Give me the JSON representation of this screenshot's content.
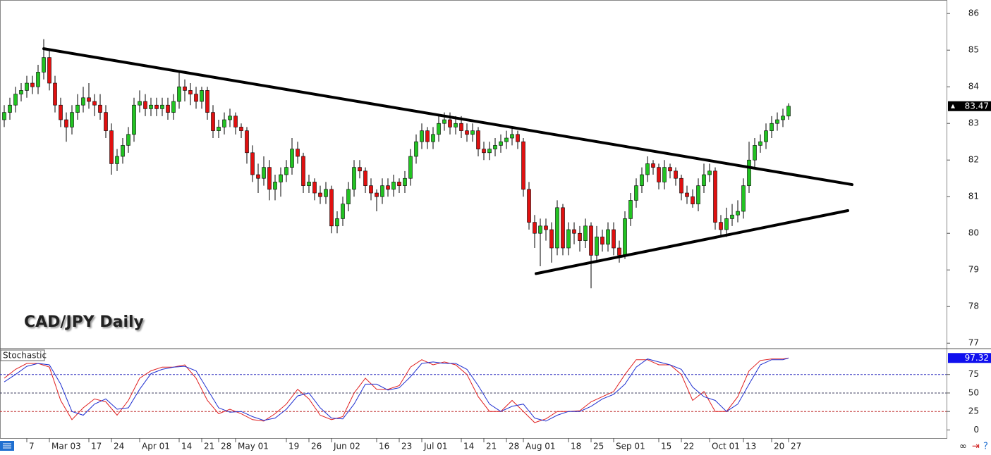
{
  "chart_data": [
    {
      "type": "candlestick",
      "title": "CAD/JPY Daily",
      "up_color": "#22c322",
      "down_color": "#e01010",
      "xlim": [
        -0.75,
        167
      ],
      "ylim": [
        76.87,
        86.35
      ],
      "yticks": [
        77,
        78,
        79,
        80,
        81,
        82,
        83,
        84,
        85,
        86
      ],
      "xticks": [
        {
          "value": 4,
          "label": "7"
        },
        {
          "value": 8,
          "label": "Mar 03"
        },
        {
          "value": 15,
          "label": "17"
        },
        {
          "value": 19,
          "label": "24"
        },
        {
          "value": 24,
          "label": "Apr 01"
        },
        {
          "value": 31,
          "label": "14"
        },
        {
          "value": 35,
          "label": "21"
        },
        {
          "value": 38,
          "label": "28"
        },
        {
          "value": 41,
          "label": "May 01"
        },
        {
          "value": 50,
          "label": "19"
        },
        {
          "value": 54,
          "label": "26"
        },
        {
          "value": 58,
          "label": "Jun 02"
        },
        {
          "value": 66,
          "label": "16"
        },
        {
          "value": 70,
          "label": "23"
        },
        {
          "value": 74,
          "label": "Jul 01"
        },
        {
          "value": 81,
          "label": "14"
        },
        {
          "value": 85,
          "label": "21"
        },
        {
          "value": 89,
          "label": "28"
        },
        {
          "value": 92,
          "label": "Aug 01"
        },
        {
          "value": 100,
          "label": "18"
        },
        {
          "value": 104,
          "label": "25"
        },
        {
          "value": 108,
          "label": "Sep 01"
        },
        {
          "value": 116,
          "label": "15"
        },
        {
          "value": 120,
          "label": "22"
        },
        {
          "value": 125,
          "label": "Oct 01"
        },
        {
          "value": 131,
          "label": "13"
        },
        {
          "value": 136,
          "label": "20"
        },
        {
          "value": 139,
          "label": "27"
        }
      ],
      "trendlines": [
        {
          "x": [
            7,
            150.25
          ],
          "y": [
            85.04,
            81.33
          ]
        },
        {
          "x": [
            94.25,
            149.5
          ],
          "y": [
            78.9,
            80.62
          ]
        }
      ],
      "ohlc": [
        [
          83.1,
          83.5,
          82.9,
          83.3
        ],
        [
          83.3,
          83.7,
          83.1,
          83.5
        ],
        [
          83.5,
          84.0,
          83.3,
          83.8
        ],
        [
          83.8,
          84.1,
          83.6,
          83.9
        ],
        [
          83.9,
          84.3,
          83.7,
          84.1
        ],
        [
          84.1,
          84.3,
          83.8,
          84.0
        ],
        [
          84.0,
          84.6,
          83.8,
          84.4
        ],
        [
          84.4,
          85.3,
          84.2,
          84.8
        ],
        [
          84.8,
          85.0,
          83.9,
          84.1
        ],
        [
          84.1,
          84.3,
          83.3,
          83.5
        ],
        [
          83.5,
          83.7,
          82.9,
          83.1
        ],
        [
          83.1,
          83.3,
          82.5,
          82.9
        ],
        [
          82.9,
          83.5,
          82.7,
          83.3
        ],
        [
          83.3,
          83.8,
          83.1,
          83.5
        ],
        [
          83.5,
          84.0,
          83.3,
          83.7
        ],
        [
          83.7,
          84.1,
          83.4,
          83.6
        ],
        [
          83.6,
          83.8,
          83.2,
          83.5
        ],
        [
          83.5,
          83.8,
          83.1,
          83.3
        ],
        [
          83.3,
          83.5,
          82.6,
          82.8
        ],
        [
          82.8,
          83.0,
          81.6,
          81.9
        ],
        [
          81.9,
          82.3,
          81.7,
          82.1
        ],
        [
          82.1,
          82.6,
          81.9,
          82.4
        ],
        [
          82.4,
          82.9,
          82.2,
          82.7
        ],
        [
          82.7,
          83.7,
          82.5,
          83.5
        ],
        [
          83.5,
          83.9,
          83.3,
          83.6
        ],
        [
          83.6,
          83.8,
          83.2,
          83.4
        ],
        [
          83.4,
          83.7,
          83.2,
          83.5
        ],
        [
          83.5,
          83.7,
          83.2,
          83.4
        ],
        [
          83.4,
          83.7,
          83.2,
          83.5
        ],
        [
          83.5,
          83.7,
          83.1,
          83.3
        ],
        [
          83.3,
          83.8,
          83.1,
          83.6
        ],
        [
          83.6,
          84.4,
          83.4,
          84.0
        ],
        [
          84.0,
          84.2,
          83.6,
          83.9
        ],
        [
          83.9,
          84.1,
          83.5,
          83.8
        ],
        [
          83.8,
          84.0,
          83.4,
          83.6
        ],
        [
          83.6,
          84.0,
          83.4,
          83.9
        ],
        [
          83.9,
          84.0,
          83.1,
          83.3
        ],
        [
          83.3,
          83.5,
          82.6,
          82.8
        ],
        [
          82.8,
          83.1,
          82.6,
          82.9
        ],
        [
          82.9,
          83.3,
          82.7,
          83.1
        ],
        [
          83.1,
          83.4,
          82.9,
          83.2
        ],
        [
          83.2,
          83.3,
          82.7,
          82.9
        ],
        [
          82.9,
          83.0,
          82.6,
          82.8
        ],
        [
          82.8,
          82.9,
          81.9,
          82.2
        ],
        [
          82.2,
          82.4,
          81.4,
          81.6
        ],
        [
          81.6,
          81.9,
          81.1,
          81.5
        ],
        [
          81.5,
          82.1,
          81.3,
          81.8
        ],
        [
          81.8,
          82.0,
          80.9,
          81.2
        ],
        [
          81.2,
          81.6,
          80.9,
          81.4
        ],
        [
          81.4,
          81.8,
          81.0,
          81.6
        ],
        [
          81.6,
          82.0,
          81.4,
          81.8
        ],
        [
          81.8,
          82.6,
          81.6,
          82.3
        ],
        [
          82.3,
          82.5,
          81.9,
          82.1
        ],
        [
          82.1,
          82.2,
          81.1,
          81.3
        ],
        [
          81.3,
          81.6,
          81.1,
          81.4
        ],
        [
          81.4,
          81.5,
          80.9,
          81.1
        ],
        [
          81.1,
          81.3,
          80.8,
          81.0
        ],
        [
          81.0,
          81.4,
          80.8,
          81.2
        ],
        [
          81.2,
          81.3,
          80.0,
          80.2
        ],
        [
          80.2,
          80.6,
          80.0,
          80.4
        ],
        [
          80.4,
          81.0,
          80.2,
          80.8
        ],
        [
          80.8,
          81.4,
          80.6,
          81.2
        ],
        [
          81.2,
          82.0,
          81.0,
          81.8
        ],
        [
          81.8,
          82.0,
          81.5,
          81.7
        ],
        [
          81.7,
          81.8,
          81.1,
          81.3
        ],
        [
          81.3,
          81.5,
          80.9,
          81.1
        ],
        [
          81.1,
          81.2,
          80.6,
          81.0
        ],
        [
          81.0,
          81.5,
          80.8,
          81.3
        ],
        [
          81.3,
          81.5,
          81.0,
          81.2
        ],
        [
          81.2,
          81.6,
          81.0,
          81.4
        ],
        [
          81.4,
          81.5,
          81.1,
          81.3
        ],
        [
          81.3,
          81.7,
          81.1,
          81.5
        ],
        [
          81.5,
          82.3,
          81.3,
          82.1
        ],
        [
          82.1,
          82.7,
          81.9,
          82.5
        ],
        [
          82.5,
          83.0,
          82.3,
          82.8
        ],
        [
          82.8,
          82.9,
          82.3,
          82.5
        ],
        [
          82.5,
          82.9,
          82.3,
          82.7
        ],
        [
          82.7,
          83.2,
          82.5,
          83.0
        ],
        [
          83.0,
          83.3,
          82.8,
          83.1
        ],
        [
          83.1,
          83.3,
          82.7,
          82.9
        ],
        [
          82.9,
          83.2,
          82.7,
          83.0
        ],
        [
          83.0,
          83.2,
          82.6,
          82.8
        ],
        [
          82.8,
          83.0,
          82.5,
          82.7
        ],
        [
          82.7,
          83.0,
          82.5,
          82.8
        ],
        [
          82.8,
          82.9,
          82.1,
          82.3
        ],
        [
          82.3,
          82.5,
          82.0,
          82.2
        ],
        [
          82.2,
          82.5,
          82.0,
          82.3
        ],
        [
          82.3,
          82.6,
          82.1,
          82.4
        ],
        [
          82.4,
          82.7,
          82.2,
          82.5
        ],
        [
          82.5,
          82.8,
          82.3,
          82.6
        ],
        [
          82.6,
          82.9,
          82.4,
          82.7
        ],
        [
          82.7,
          82.8,
          82.3,
          82.5
        ],
        [
          82.5,
          82.6,
          81.0,
          81.2
        ],
        [
          81.2,
          81.4,
          80.1,
          80.3
        ],
        [
          80.3,
          80.5,
          79.6,
          80.0
        ],
        [
          80.0,
          80.4,
          79.1,
          80.2
        ],
        [
          80.2,
          80.4,
          79.8,
          80.1
        ],
        [
          80.1,
          80.3,
          79.2,
          79.6
        ],
        [
          79.6,
          80.9,
          79.4,
          80.7
        ],
        [
          80.7,
          80.8,
          79.4,
          79.6
        ],
        [
          79.6,
          80.3,
          79.4,
          80.1
        ],
        [
          80.1,
          80.3,
          79.7,
          80.0
        ],
        [
          80.0,
          80.2,
          79.5,
          79.8
        ],
        [
          79.8,
          80.4,
          79.6,
          80.2
        ],
        [
          80.2,
          80.3,
          78.5,
          79.4
        ],
        [
          79.4,
          80.2,
          79.2,
          79.9
        ],
        [
          79.9,
          80.1,
          79.5,
          79.7
        ],
        [
          79.7,
          80.3,
          79.5,
          80.1
        ],
        [
          80.1,
          80.3,
          79.4,
          79.6
        ],
        [
          79.6,
          79.8,
          79.2,
          79.4
        ],
        [
          79.4,
          80.6,
          79.3,
          80.4
        ],
        [
          80.4,
          81.1,
          80.2,
          80.9
        ],
        [
          80.9,
          81.5,
          80.7,
          81.3
        ],
        [
          81.3,
          81.8,
          81.1,
          81.6
        ],
        [
          81.6,
          82.1,
          81.4,
          81.9
        ],
        [
          81.9,
          82.0,
          81.6,
          81.8
        ],
        [
          81.8,
          81.9,
          81.2,
          81.4
        ],
        [
          81.4,
          82.0,
          81.2,
          81.8
        ],
        [
          81.8,
          81.9,
          81.5,
          81.7
        ],
        [
          81.7,
          81.8,
          81.3,
          81.5
        ],
        [
          81.5,
          81.6,
          80.9,
          81.1
        ],
        [
          81.1,
          81.3,
          80.8,
          81.0
        ],
        [
          81.0,
          81.2,
          80.7,
          80.8
        ],
        [
          80.8,
          81.5,
          80.6,
          81.3
        ],
        [
          81.3,
          81.9,
          81.1,
          81.6
        ],
        [
          81.6,
          81.9,
          81.4,
          81.7
        ],
        [
          81.7,
          81.8,
          80.1,
          80.3
        ],
        [
          80.3,
          80.5,
          79.9,
          80.1
        ],
        [
          80.1,
          80.7,
          79.9,
          80.4
        ],
        [
          80.4,
          80.8,
          80.2,
          80.5
        ],
        [
          80.5,
          80.9,
          80.3,
          80.6
        ],
        [
          80.6,
          81.5,
          80.4,
          81.3
        ],
        [
          81.3,
          82.5,
          81.1,
          82.0
        ],
        [
          82.0,
          82.6,
          81.8,
          82.4
        ],
        [
          82.4,
          82.7,
          82.2,
          82.5
        ],
        [
          82.5,
          83.0,
          82.3,
          82.8
        ],
        [
          82.8,
          83.2,
          82.6,
          83.0
        ],
        [
          83.0,
          83.3,
          82.8,
          83.1
        ],
        [
          83.1,
          83.4,
          82.9,
          83.2
        ],
        [
          83.2,
          83.55,
          83.1,
          83.47
        ]
      ]
    },
    {
      "type": "line",
      "title": "Stochastic",
      "xlim": [
        -0.75,
        167
      ],
      "ylim": [
        -11,
        109
      ],
      "yticks": [
        0,
        25,
        50,
        75
      ],
      "levels": [
        {
          "value": 75,
          "color": "#3030c0"
        },
        {
          "value": 50,
          "color": "#404060"
        },
        {
          "value": 25,
          "color": "#c03030"
        }
      ],
      "x": [
        0,
        2,
        4,
        6,
        8,
        10,
        12,
        14,
        16,
        18,
        20,
        22,
        24,
        26,
        28,
        30,
        32,
        34,
        36,
        38,
        40,
        42,
        44,
        46,
        48,
        50,
        52,
        54,
        56,
        58,
        60,
        62,
        64,
        66,
        68,
        70,
        72,
        74,
        76,
        78,
        80,
        82,
        84,
        86,
        88,
        90,
        92,
        94,
        96,
        98,
        100,
        102,
        104,
        106,
        108,
        110,
        112,
        114,
        116,
        118,
        120,
        122,
        124,
        126,
        128,
        130,
        132,
        134,
        136,
        138,
        139
      ],
      "series": [
        {
          "color": "#e02020",
          "values": [
            70,
            82,
            90,
            90,
            85,
            40,
            14,
            30,
            42,
            38,
            20,
            40,
            70,
            80,
            85,
            85,
            88,
            70,
            40,
            22,
            28,
            22,
            14,
            12,
            22,
            35,
            55,
            42,
            20,
            14,
            18,
            50,
            70,
            55,
            55,
            60,
            85,
            95,
            88,
            92,
            88,
            75,
            45,
            25,
            25,
            40,
            25,
            10,
            15,
            25,
            25,
            26,
            38,
            45,
            52,
            75,
            95,
            95,
            88,
            88,
            75,
            40,
            52,
            25,
            25,
            45,
            80,
            94,
            96,
            96,
            97.32
          ]
        },
        {
          "color": "#2030d0",
          "values": [
            65,
            75,
            86,
            90,
            88,
            62,
            25,
            20,
            35,
            42,
            28,
            30,
            55,
            76,
            82,
            85,
            86,
            80,
            55,
            30,
            24,
            25,
            18,
            13,
            16,
            28,
            46,
            50,
            30,
            16,
            15,
            35,
            62,
            62,
            54,
            57,
            72,
            90,
            92,
            90,
            90,
            82,
            60,
            35,
            25,
            32,
            35,
            16,
            12,
            20,
            25,
            25,
            32,
            42,
            48,
            62,
            85,
            96,
            92,
            88,
            82,
            58,
            45,
            40,
            25,
            35,
            62,
            88,
            95,
            95,
            97.32
          ]
        }
      ]
    }
  ]
}
